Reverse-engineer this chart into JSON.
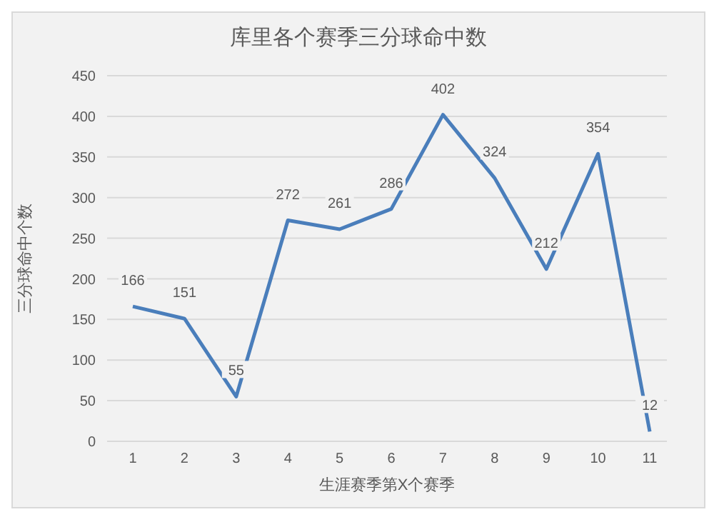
{
  "chart_data": {
    "type": "line",
    "title": "库里各个赛季三分球命中数",
    "xlabel": "生涯赛季第X个赛季",
    "ylabel": "三分球命中个数",
    "categories": [
      "1",
      "2",
      "3",
      "4",
      "5",
      "6",
      "7",
      "8",
      "9",
      "10",
      "11"
    ],
    "series": [
      {
        "color": "#4a7ebb",
        "values": [
          166,
          151,
          55,
          272,
          261,
          286,
          402,
          324,
          212,
          354,
          12
        ]
      }
    ],
    "ylim": [
      0,
      450
    ],
    "yticks": [
      0,
      50,
      100,
      150,
      200,
      250,
      300,
      350,
      400,
      450
    ],
    "grid": "y",
    "data_labels": true,
    "marker": "none",
    "line_style": "solid"
  }
}
